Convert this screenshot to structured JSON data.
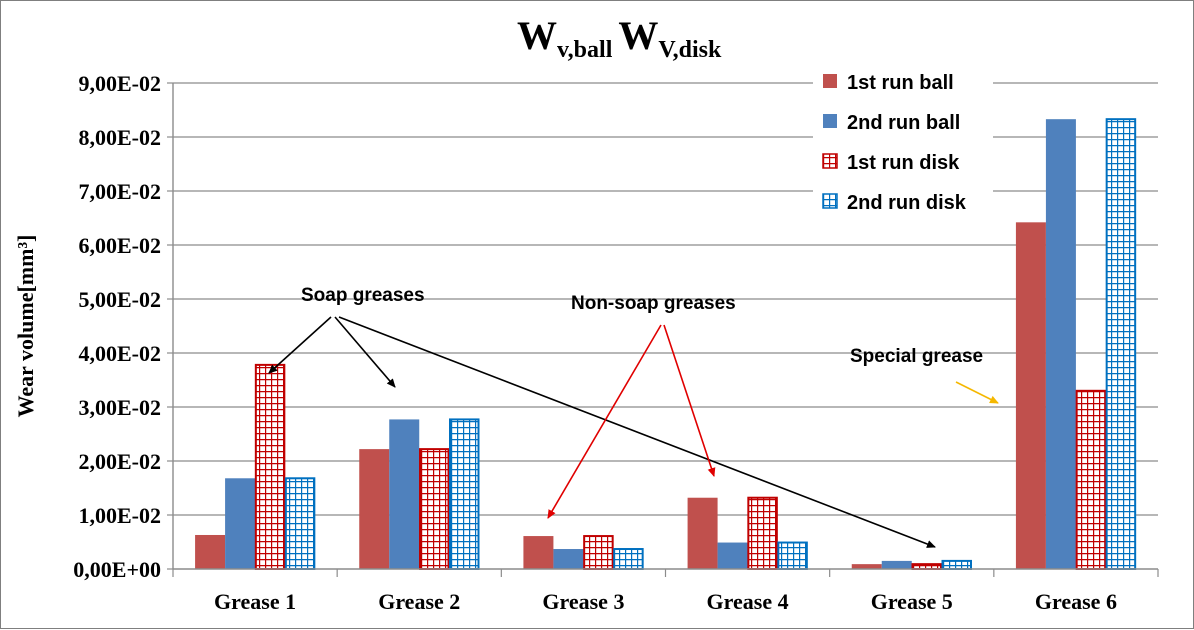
{
  "chart_data": {
    "type": "bar",
    "title": {
      "main1": "W",
      "sub1": "v,ball",
      "main2": "W",
      "sub2": "V,disk"
    },
    "ylabel": "Wear volume[mm³]",
    "xlabel": "",
    "ylim": [
      0,
      0.09
    ],
    "yticks": [
      0,
      0.01,
      0.02,
      0.03,
      0.04,
      0.05,
      0.06,
      0.07,
      0.08,
      0.09
    ],
    "ytick_labels": [
      "0,00E+00",
      "1,00E-02",
      "2,00E-02",
      "3,00E-02",
      "4,00E-02",
      "5,00E-02",
      "6,00E-02",
      "7,00E-02",
      "8,00E-02",
      "9,00E-02"
    ],
    "grid": true,
    "legend_position": "top-right",
    "categories": [
      "Grease 1",
      "Grease 2",
      "Grease 3",
      "Grease 4",
      "Grease 5",
      "Grease 6"
    ],
    "series": [
      {
        "name": "1st run ball",
        "color": "#c0504d",
        "pattern": "solid",
        "values": [
          0.0063,
          0.0222,
          0.0061,
          0.0132,
          0.0009,
          0.0642
        ]
      },
      {
        "name": "2nd run ball",
        "color": "#4f81bd",
        "pattern": "solid",
        "values": [
          0.0168,
          0.0277,
          0.0037,
          0.0049,
          0.0015,
          0.0833
        ]
      },
      {
        "name": "1st run disk",
        "color": "#c00000",
        "pattern": "grid",
        "values": [
          0.0378,
          0.0222,
          0.0061,
          0.0132,
          0.0009,
          0.033
        ]
      },
      {
        "name": "2nd run disk",
        "color": "#0070c0",
        "pattern": "grid",
        "values": [
          0.0168,
          0.0277,
          0.0037,
          0.0049,
          0.0015,
          0.0833
        ]
      }
    ],
    "annotations": [
      {
        "text": "Soap greases"
      },
      {
        "text": "Non-soap greases"
      },
      {
        "text": "Special grease"
      }
    ]
  }
}
